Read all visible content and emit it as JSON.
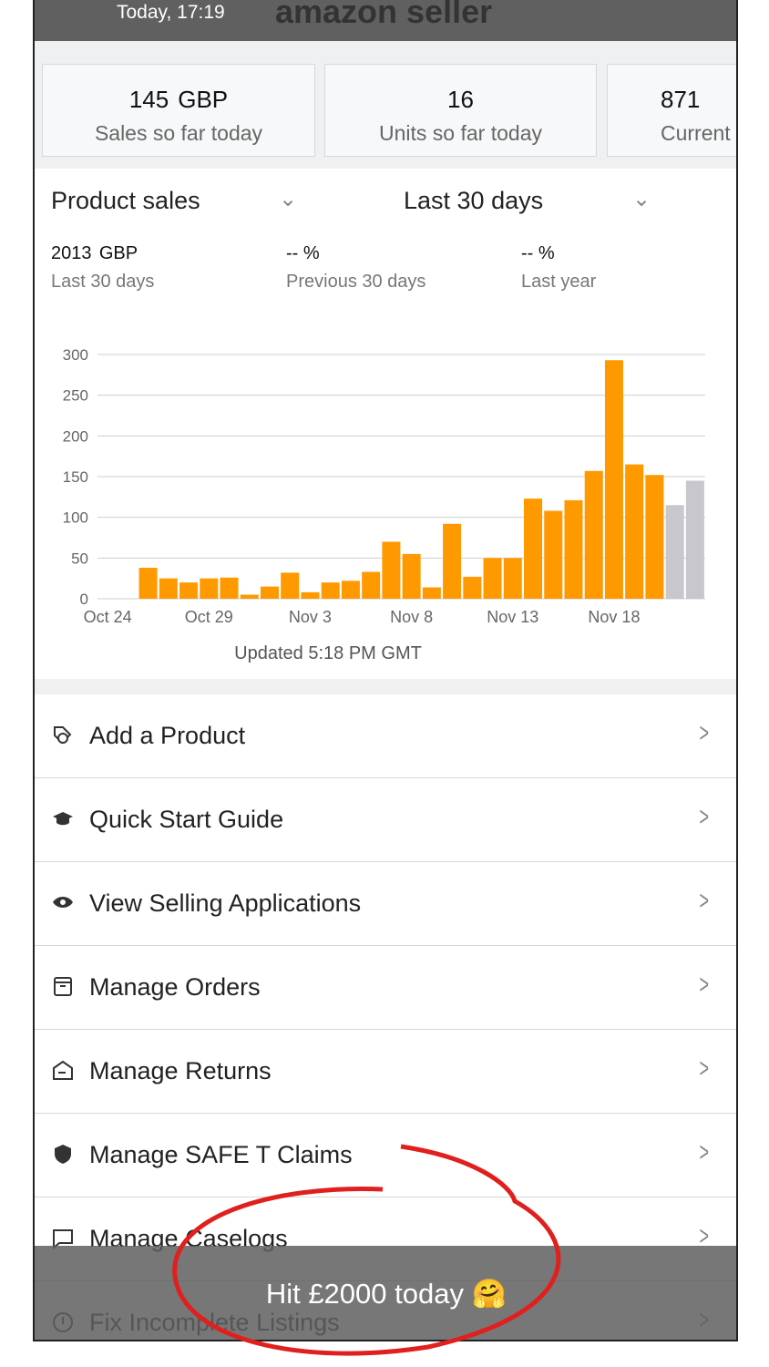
{
  "status_bar": {
    "time": "Today, 17:19",
    "logo": "amazon seller"
  },
  "summary_cards": [
    {
      "value": "145",
      "unit": "GBP",
      "label": "Sales so far today"
    },
    {
      "value": "16",
      "label": "Units so far today"
    },
    {
      "value": "871",
      "label": "Current"
    }
  ],
  "sales": {
    "metric_selector": "Product sales",
    "period_selector": "Last 30 days",
    "stats": [
      {
        "value": "2013",
        "unit": "GBP",
        "label": "Last 30 days"
      },
      {
        "value": "-- %",
        "label": "Previous 30 days"
      },
      {
        "value": "-- %",
        "label": "Last year"
      }
    ],
    "updated": "Updated 5:18 PM GMT"
  },
  "chart_data": {
    "type": "bar",
    "categories": [
      "Oct 24",
      null,
      null,
      null,
      null,
      "Oct 29",
      null,
      null,
      null,
      null,
      "Nov 3",
      null,
      null,
      null,
      null,
      "Nov 8",
      null,
      null,
      null,
      null,
      "Nov 13",
      null,
      null,
      null,
      null,
      "Nov 18",
      null,
      null,
      null,
      null
    ],
    "series": [
      {
        "color": "#ff9900",
        "values": [
          0,
          0,
          38,
          25,
          20,
          25,
          26,
          5,
          15,
          32,
          8,
          20,
          22,
          33,
          70,
          55,
          14,
          92,
          27,
          50,
          50,
          123,
          108,
          121,
          157,
          293,
          165,
          152,
          null,
          null
        ]
      },
      {
        "color": "#c7c7cc",
        "values": [
          null,
          null,
          null,
          null,
          null,
          null,
          null,
          null,
          null,
          null,
          null,
          null,
          null,
          null,
          null,
          null,
          null,
          null,
          null,
          null,
          null,
          null,
          null,
          null,
          null,
          null,
          null,
          null,
          115,
          145
        ]
      }
    ],
    "ylim": [
      0,
      300
    ],
    "yticks": [
      0,
      50,
      100,
      150,
      200,
      250,
      300
    ],
    "grid": true
  },
  "menu": [
    "Add a Product",
    "Quick Start Guide",
    "View Selling Applications",
    "Manage Orders",
    "Manage Returns",
    "Manage SAFE T Claims",
    "Manage Caselogs",
    "Fix Incomplete Listings"
  ],
  "toast": "Hit £2000 today 🤗"
}
